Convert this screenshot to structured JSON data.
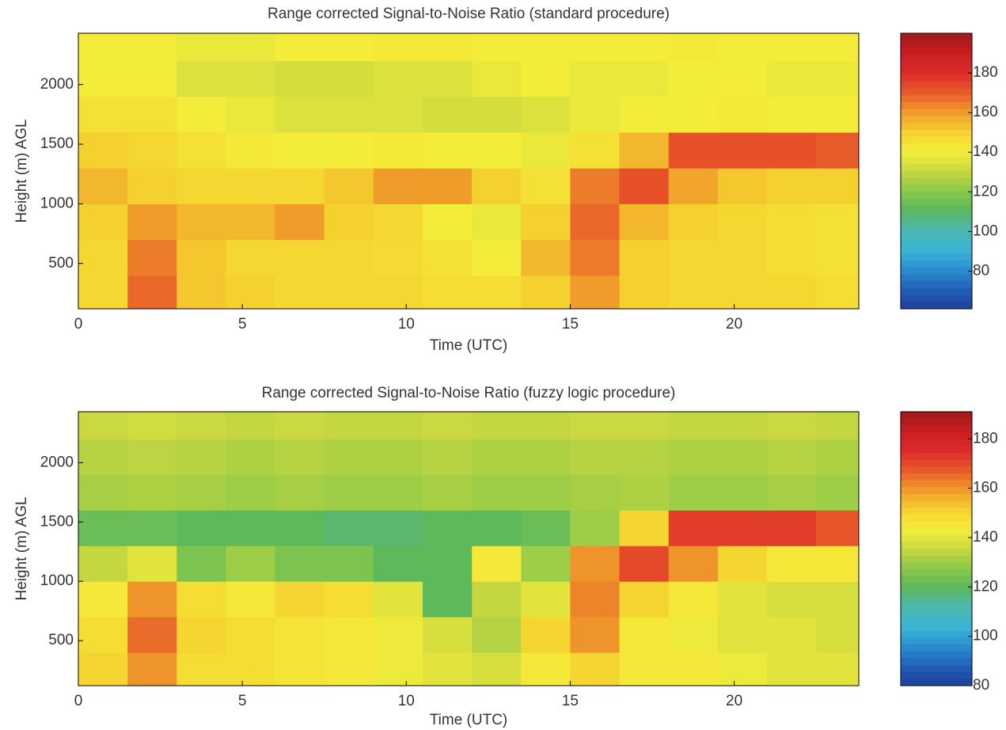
{
  "chart_data": [
    {
      "type": "heatmap",
      "title": "Range corrected Signal-to-Noise Ratio (standard procedure)",
      "x_label": "Time (UTC)",
      "y_label": "Height (m) AGL",
      "xlim": [
        0,
        23.8
      ],
      "xticks": [
        0,
        5,
        10,
        15,
        20
      ],
      "ylim": [
        120,
        2430
      ],
      "yticks": [
        500,
        1000,
        1500,
        2000
      ],
      "x_edges": [
        0,
        1.5,
        3,
        4.5,
        6,
        7.5,
        9,
        10.5,
        12,
        13.5,
        15,
        16.5,
        18,
        19.5,
        21,
        22.5,
        23.8
      ],
      "y_edges": [
        120,
        400,
        700,
        1000,
        1300,
        1600,
        1900,
        2200,
        2430
      ],
      "z": [
        [
          148,
          168,
          152,
          150,
          148,
          148,
          148,
          146,
          146,
          150,
          160,
          150,
          148,
          148,
          148,
          146
        ],
        [
          148,
          165,
          152,
          148,
          148,
          148,
          147,
          145,
          140,
          155,
          165,
          150,
          148,
          148,
          146,
          145
        ],
        [
          150,
          160,
          155,
          155,
          160,
          150,
          148,
          140,
          138,
          150,
          168,
          155,
          150,
          148,
          146,
          145
        ],
        [
          155,
          150,
          148,
          148,
          148,
          152,
          160,
          160,
          150,
          145,
          165,
          172,
          158,
          152,
          150,
          150
        ],
        [
          150,
          148,
          145,
          142,
          140,
          140,
          142,
          140,
          140,
          138,
          145,
          155,
          172,
          172,
          172,
          170
        ],
        [
          145,
          145,
          140,
          138,
          135,
          135,
          135,
          133,
          133,
          135,
          138,
          140,
          140,
          142,
          140,
          140
        ],
        [
          140,
          140,
          135,
          135,
          133,
          133,
          135,
          135,
          138,
          140,
          138,
          138,
          140,
          140,
          138,
          138
        ],
        [
          140,
          140,
          138,
          138,
          140,
          140,
          142,
          142,
          140,
          140,
          140,
          140,
          142,
          140,
          140,
          140
        ]
      ],
      "clim": [
        61,
        200
      ],
      "cticks": [
        80,
        100,
        120,
        140,
        160,
        180
      ],
      "colormap": [
        "#1f3f9c",
        "#2060b8",
        "#2a8fd0",
        "#3bb5d4",
        "#4cb8b0",
        "#5cb85c",
        "#8cc84a",
        "#c8d840",
        "#f5ee3a",
        "#f5d030",
        "#f09a2a",
        "#e85a2a",
        "#dd2a2a",
        "#c81e22",
        "#a01818"
      ]
    },
    {
      "type": "heatmap",
      "title": "Range corrected Signal-to-Noise Ratio (fuzzy logic procedure)",
      "x_label": "Time (UTC)",
      "y_label": "Height (m) AGL",
      "xlim": [
        0,
        23.8
      ],
      "xticks": [
        0,
        5,
        10,
        15,
        20
      ],
      "ylim": [
        120,
        2430
      ],
      "yticks": [
        500,
        1000,
        1500,
        2000
      ],
      "x_edges": [
        0,
        1.5,
        3,
        4.5,
        6,
        7.5,
        9,
        10.5,
        12,
        13.5,
        15,
        16.5,
        18,
        19.5,
        21,
        22.5,
        23.8
      ],
      "y_edges": [
        120,
        400,
        700,
        1000,
        1300,
        1600,
        1900,
        2200,
        2430
      ],
      "z": [
        [
          150,
          160,
          148,
          148,
          146,
          145,
          142,
          140,
          138,
          145,
          150,
          145,
          145,
          142,
          140,
          140
        ],
        [
          148,
          165,
          150,
          148,
          146,
          145,
          142,
          138,
          133,
          150,
          160,
          145,
          142,
          140,
          140,
          138
        ],
        [
          145,
          160,
          148,
          145,
          150,
          148,
          140,
          120,
          135,
          140,
          162,
          150,
          145,
          140,
          138,
          138
        ],
        [
          135,
          140,
          125,
          130,
          125,
          125,
          120,
          120,
          145,
          130,
          160,
          170,
          160,
          150,
          145,
          145
        ],
        [
          122,
          122,
          120,
          120,
          120,
          118,
          118,
          120,
          120,
          122,
          130,
          150,
          172,
          172,
          172,
          168
        ],
        [
          131,
          132,
          131,
          130,
          131,
          130,
          130,
          131,
          130,
          130,
          131,
          132,
          130,
          130,
          131,
          130
        ],
        [
          133,
          134,
          133,
          132,
          133,
          132,
          132,
          133,
          132,
          132,
          133,
          133,
          132,
          132,
          133,
          132
        ],
        [
          136,
          137,
          136,
          135,
          136,
          135,
          135,
          136,
          135,
          135,
          136,
          136,
          135,
          135,
          136,
          135
        ]
      ],
      "clim": [
        80,
        191
      ],
      "cticks": [
        80,
        100,
        120,
        140,
        160,
        180
      ],
      "colormap": [
        "#1f3f9c",
        "#2060b8",
        "#2a8fd0",
        "#3bb5d4",
        "#4cb8b0",
        "#5cb85c",
        "#8cc84a",
        "#c8d840",
        "#f5ee3a",
        "#f5d030",
        "#f09a2a",
        "#e85a2a",
        "#dd2a2a",
        "#c81e22",
        "#a01818"
      ]
    }
  ]
}
